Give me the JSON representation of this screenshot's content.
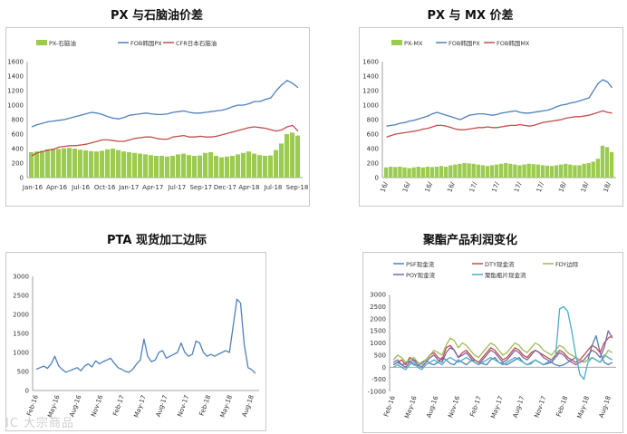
{
  "watermark": "IC 大宗商品",
  "chart_data": [
    {
      "type": "line",
      "title": "PX 与石脑油价差",
      "ylim": [
        0,
        1600
      ],
      "yticks": [
        0,
        200,
        400,
        600,
        800,
        1000,
        1200,
        1400,
        1600
      ],
      "xtick_labels": [
        "Jan-16",
        "Apr-16",
        "Jul-16",
        "Oct-16",
        "Jan-17",
        "Apr-17",
        "Jul-17",
        "Sep-17",
        "Dec-17",
        "Apr-18",
        "Jul-18",
        "Sep-18"
      ],
      "legend": "top",
      "grid": false,
      "series": [
        {
          "name": "PX-石脑油",
          "kind": "bar",
          "color": "#9bcb4f",
          "values": [
            350,
            360,
            370,
            390,
            400,
            395,
            405,
            410,
            400,
            385,
            375,
            365,
            360,
            370,
            390,
            400,
            380,
            360,
            350,
            340,
            330,
            320,
            310,
            300,
            300,
            290,
            300,
            320,
            330,
            310,
            300,
            305,
            340,
            350,
            300,
            280,
            290,
            300,
            320,
            340,
            360,
            330,
            310,
            300,
            305,
            380,
            470,
            600,
            620,
            580
          ]
        },
        {
          "name": "FOB韩国PX",
          "kind": "line",
          "color": "#4f81bd",
          "values": [
            700,
            730,
            750,
            770,
            780,
            790,
            800,
            820,
            840,
            860,
            880,
            900,
            890,
            870,
            840,
            820,
            810,
            830,
            860,
            870,
            880,
            890,
            880,
            870,
            870,
            880,
            900,
            910,
            920,
            900,
            890,
            890,
            900,
            910,
            920,
            930,
            950,
            980,
            1000,
            1000,
            1020,
            1050,
            1050,
            1080,
            1100,
            1200,
            1280,
            1340,
            1300,
            1240
          ]
        },
        {
          "name": "CFR日本石脑油",
          "kind": "line",
          "color": "#c0504d",
          "values": [
            300,
            340,
            360,
            380,
            390,
            420,
            430,
            440,
            440,
            450,
            460,
            480,
            500,
            520,
            520,
            510,
            500,
            500,
            520,
            540,
            550,
            560,
            560,
            540,
            530,
            530,
            560,
            570,
            580,
            560,
            560,
            570,
            560,
            560,
            570,
            590,
            610,
            630,
            650,
            670,
            690,
            700,
            690,
            680,
            660,
            640,
            660,
            700,
            720,
            640
          ]
        }
      ]
    },
    {
      "type": "line",
      "title": "PX 与 MX 价差",
      "ylim": [
        0,
        1600
      ],
      "yticks": [
        0,
        200,
        400,
        600,
        800,
        1000,
        1200,
        1400,
        1600
      ],
      "xtick_labels": [
        "16/",
        "16/",
        "16/",
        "16/",
        "17/",
        "17/",
        "17/",
        "17/",
        "18/",
        "18/",
        "18/"
      ],
      "legend": "top",
      "grid": false,
      "series": [
        {
          "name": "PX-MX",
          "kind": "bar",
          "color": "#9bcb4f",
          "values": [
            140,
            150,
            145,
            150,
            140,
            130,
            140,
            150,
            140,
            150,
            145,
            150,
            160,
            150,
            170,
            180,
            190,
            200,
            195,
            190,
            180,
            170,
            160,
            170,
            180,
            190,
            200,
            190,
            180,
            170,
            180,
            190,
            185,
            180,
            170,
            165,
            160,
            170,
            180,
            190,
            180,
            170,
            170,
            190,
            200,
            220,
            260,
            440,
            420,
            350
          ]
        },
        {
          "name": "FOB韩国PX",
          "kind": "line",
          "color": "#4f81bd",
          "values": [
            710,
            720,
            730,
            750,
            760,
            780,
            790,
            810,
            830,
            850,
            880,
            900,
            880,
            860,
            840,
            820,
            800,
            830,
            860,
            870,
            880,
            880,
            870,
            860,
            870,
            890,
            900,
            910,
            920,
            900,
            890,
            890,
            900,
            910,
            920,
            930,
            950,
            980,
            1000,
            1010,
            1030,
            1040,
            1060,
            1080,
            1100,
            1200,
            1300,
            1350,
            1320,
            1240
          ]
        },
        {
          "name": "FOB韩国MX",
          "kind": "line",
          "color": "#c0504d",
          "values": [
            560,
            580,
            600,
            610,
            620,
            630,
            640,
            650,
            670,
            680,
            700,
            720,
            720,
            710,
            690,
            670,
            660,
            660,
            670,
            680,
            690,
            690,
            700,
            690,
            690,
            700,
            710,
            720,
            720,
            730,
            720,
            710,
            720,
            740,
            760,
            770,
            780,
            790,
            800,
            820,
            830,
            840,
            840,
            850,
            860,
            880,
            900,
            920,
            900,
            890
          ]
        }
      ]
    },
    {
      "type": "line",
      "title": "PTA 现货加工边际",
      "ylim": [
        0,
        3000
      ],
      "yticks": [
        0,
        500,
        1000,
        1500,
        2000,
        2500,
        3000
      ],
      "xtick_labels": [
        "Feb-16",
        "May-16",
        "Aug-16",
        "Nov-16",
        "Feb-17",
        "May-17",
        "Aug-17",
        "Nov-17",
        "Feb-18",
        "May-18",
        "Aug-18"
      ],
      "grid": false,
      "series": [
        {
          "name": "",
          "kind": "line",
          "color": "#4f81bd",
          "values": [
            560,
            600,
            640,
            580,
            700,
            900,
            650,
            550,
            480,
            520,
            560,
            600,
            520,
            640,
            700,
            620,
            780,
            700,
            760,
            800,
            850,
            720,
            600,
            560,
            500,
            480,
            560,
            700,
            800,
            1350,
            900,
            760,
            800,
            1000,
            1050,
            850,
            900,
            950,
            1000,
            1250,
            1000,
            900,
            950,
            1300,
            1250,
            1000,
            900,
            950,
            900,
            950,
            1000,
            1050,
            1000,
            1700,
            2400,
            2300,
            1200,
            600,
            550,
            450
          ]
        }
      ]
    },
    {
      "type": "line",
      "title": "聚酯产品利润变化",
      "ylim": [
        -1000,
        3000
      ],
      "yticks": [
        -1000,
        -500,
        0,
        500,
        1000,
        1500,
        2000,
        2500,
        3000
      ],
      "xtick_labels": [
        "Feb-16",
        "May-16",
        "Aug-16",
        "Nov-16",
        "Feb-17",
        "May-17",
        "Aug-17",
        "Nov-17",
        "Feb-18",
        "May-18",
        "Aug-18"
      ],
      "legend": "top",
      "grid": false,
      "series": [
        {
          "name": "PSF现金流",
          "kind": "line",
          "color": "#4f81bd",
          "values": [
            200,
            300,
            100,
            150,
            250,
            100,
            50,
            200,
            300,
            150,
            100,
            200,
            400,
            300,
            150,
            100,
            300,
            200,
            100,
            250,
            300,
            200,
            150,
            100,
            300,
            400,
            200,
            150,
            100,
            200,
            300,
            400,
            200,
            100,
            150,
            300,
            200,
            100,
            150,
            200,
            100,
            50,
            100,
            200,
            300,
            400,
            300,
            200,
            300,
            900,
            1300,
            600,
            200,
            100,
            200
          ]
        },
        {
          "name": "DTY现金流",
          "kind": "line",
          "color": "#c0504d",
          "values": [
            100,
            200,
            300,
            100,
            400,
            300,
            200,
            100,
            300,
            500,
            600,
            400,
            300,
            800,
            900,
            700,
            400,
            600,
            700,
            500,
            300,
            200,
            400,
            600,
            800,
            700,
            500,
            300,
            400,
            600,
            800,
            700,
            500,
            400,
            600,
            700,
            600,
            500,
            400,
            300,
            500,
            700,
            600,
            400,
            300,
            200,
            300,
            500,
            700,
            900,
            800,
            600,
            1000,
            1200,
            1300
          ]
        },
        {
          "name": "FDY边际",
          "kind": "line",
          "color": "#9bbb59",
          "values": [
            300,
            500,
            400,
            200,
            300,
            400,
            200,
            100,
            300,
            500,
            700,
            600,
            500,
            900,
            1200,
            1100,
            800,
            1000,
            900,
            700,
            500,
            400,
            600,
            800,
            1000,
            900,
            700,
            500,
            600,
            800,
            1000,
            900,
            700,
            600,
            800,
            1000,
            900,
            700,
            600,
            500,
            700,
            900,
            800,
            600,
            500,
            400,
            300,
            200,
            300,
            400,
            300,
            200,
            400,
            700,
            600
          ]
        },
        {
          "name": "POY现金流",
          "kind": "line",
          "color": "#8064a2",
          "values": [
            100,
            200,
            100,
            0,
            200,
            300,
            100,
            0,
            200,
            400,
            500,
            300,
            200,
            600,
            800,
            700,
            400,
            500,
            600,
            400,
            200,
            100,
            300,
            500,
            700,
            600,
            400,
            200,
            300,
            500,
            700,
            600,
            400,
            300,
            500,
            700,
            600,
            400,
            300,
            200,
            400,
            600,
            500,
            300,
            200,
            100,
            200,
            300,
            500,
            700,
            600,
            400,
            800,
            1500,
            1200
          ]
        },
        {
          "name": "聚酯瓶片现金流",
          "kind": "line",
          "color": "#4bacc6",
          "values": [
            0,
            100,
            0,
            -100,
            100,
            200,
            0,
            -100,
            100,
            200,
            300,
            200,
            100,
            300,
            400,
            300,
            200,
            300,
            400,
            300,
            200,
            100,
            200,
            300,
            400,
            300,
            200,
            100,
            200,
            300,
            400,
            300,
            200,
            100,
            200,
            300,
            200,
            100,
            200,
            300,
            400,
            2400,
            2500,
            2300,
            1500,
            500,
            -300,
            -500,
            200,
            400,
            300,
            200,
            500,
            400,
            300
          ]
        }
      ]
    }
  ]
}
